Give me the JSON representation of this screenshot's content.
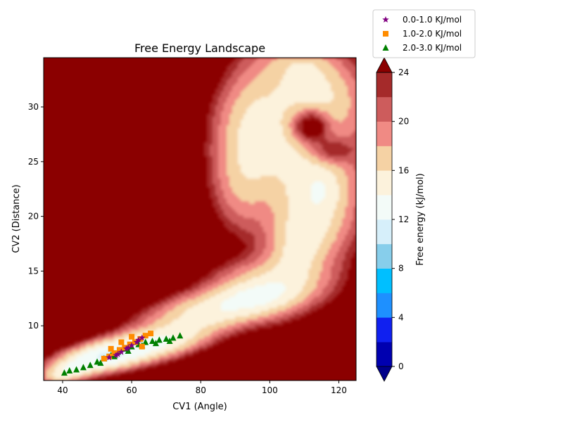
{
  "chart_data": {
    "type": "contour",
    "title": "Free Energy Landscape",
    "xlabel": "CV1 (Angle)",
    "ylabel": "CV2 (Distance)",
    "xlim": [
      34.5,
      125
    ],
    "ylim": [
      5,
      34.5
    ],
    "x_ticks": [
      40,
      60,
      80,
      100,
      120
    ],
    "y_ticks": [
      10,
      15,
      20,
      25,
      30
    ],
    "background_color": "#8b0000",
    "colorbar": {
      "label": "Free energy (kJ/mol)",
      "range": [
        0,
        24
      ],
      "ticks": [
        0,
        4,
        8,
        12,
        16,
        20,
        24
      ],
      "extend": "both",
      "levels": [
        {
          "from": 0,
          "to": 2,
          "color": "#0000b0"
        },
        {
          "from": 2,
          "to": 4,
          "color": "#1020f0"
        },
        {
          "from": 4,
          "to": 6,
          "color": "#1e90ff"
        },
        {
          "from": 6,
          "to": 8,
          "color": "#00bfff"
        },
        {
          "from": 8,
          "to": 10,
          "color": "#87ceeb"
        },
        {
          "from": 10,
          "to": 12,
          "color": "#d6effa"
        },
        {
          "from": 12,
          "to": 14,
          "color": "#f3fbf8"
        },
        {
          "from": 14,
          "to": 16,
          "color": "#fcf2dc"
        },
        {
          "from": 16,
          "to": 18,
          "color": "#f5d2a4"
        },
        {
          "from": 18,
          "to": 20,
          "color": "#f08a84"
        },
        {
          "from": 20,
          "to": 22,
          "color": "#cd5c5c"
        },
        {
          "from": 22,
          "to": 24,
          "color": "#a52a2a"
        }
      ],
      "under_color": "#00008b",
      "over_color": "#8b0000"
    },
    "series": [
      {
        "name": "0.0-1.0 KJ/mol",
        "marker": "star",
        "color": "#800080",
        "x": [
          53.5,
          55.5,
          57.0,
          58.5,
          60.0,
          61.5,
          63.0,
          56.0,
          59.0,
          62.0
        ],
        "y": [
          7.1,
          7.3,
          7.6,
          7.9,
          8.2,
          8.5,
          8.9,
          7.4,
          8.0,
          8.7
        ]
      },
      {
        "name": "1.0-2.0 KJ/mol",
        "marker": "square",
        "color": "#ff8c00",
        "x": [
          52.0,
          53.5,
          55.0,
          56.5,
          58.0,
          59.5,
          61.0,
          62.5,
          64.0,
          65.5,
          54.0,
          57.0,
          60.0,
          63.0
        ],
        "y": [
          7.0,
          7.2,
          7.5,
          7.8,
          8.0,
          8.3,
          8.5,
          8.8,
          9.1,
          9.3,
          7.9,
          8.5,
          9.0,
          8.1
        ]
      },
      {
        "name": "2.0-3.0 KJ/mol",
        "marker": "triangle",
        "color": "#008000",
        "x": [
          40.5,
          42.0,
          44.0,
          46.0,
          48.0,
          50.0,
          52.0,
          54.0,
          56.0,
          58.0,
          60.0,
          62.0,
          64.0,
          66.0,
          68.0,
          70.0,
          72.0,
          74.0,
          51.0,
          55.0,
          59.0,
          63.0,
          67.0,
          71.0
        ],
        "y": [
          5.7,
          5.9,
          6.0,
          6.2,
          6.4,
          6.7,
          7.0,
          7.3,
          7.6,
          7.9,
          8.1,
          8.3,
          8.5,
          8.6,
          8.7,
          8.8,
          8.9,
          9.1,
          6.6,
          7.2,
          7.7,
          8.2,
          8.4,
          8.6
        ]
      }
    ],
    "legend_position": "top-right, above colorbar"
  }
}
